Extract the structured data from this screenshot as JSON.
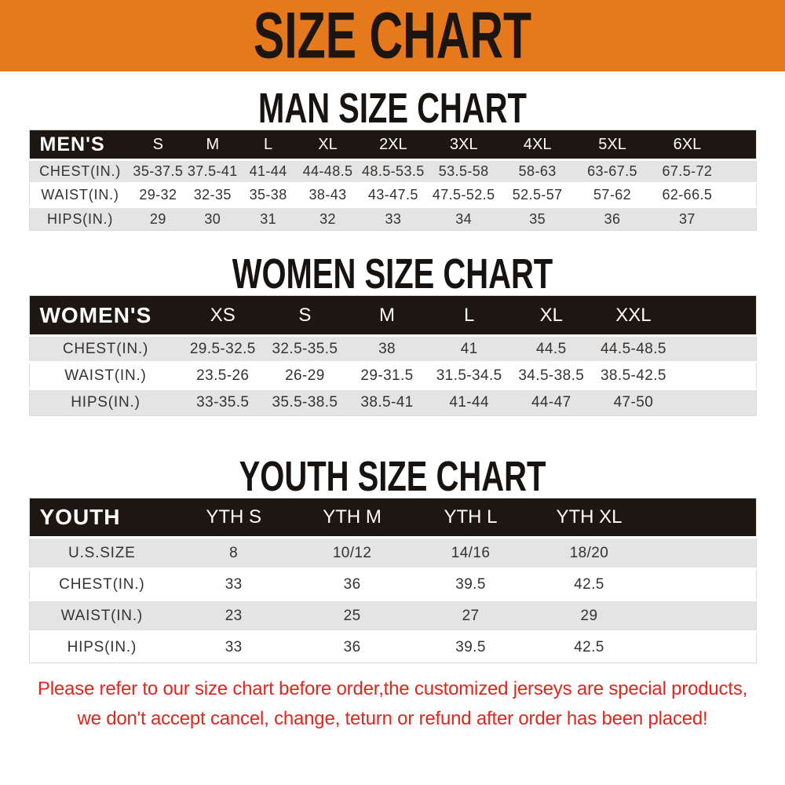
{
  "banner": {
    "title": "SIZE CHART"
  },
  "colors": {
    "banner_orange": "#e6791b",
    "table_header_black": "#1e1711",
    "row_gray": "#e4e4e4",
    "row_white": "#ffffff",
    "disclaimer_red": "#e1251f"
  },
  "sections": [
    {
      "id": "man",
      "title": "MAN SIZE CHART",
      "header_label": "MEN'S",
      "columns": [
        "S",
        "M",
        "L",
        "XL",
        "2XL",
        "3XL",
        "4XL",
        "5XL",
        "6XL"
      ],
      "rows": [
        {
          "label": "CHEST(IN.)",
          "values": [
            "35-37.5",
            "37.5-41",
            "41-44",
            "44-48.5",
            "48.5-53.5",
            "53.5-58",
            "58-63",
            "63-67.5",
            "67.5-72"
          ]
        },
        {
          "label": "WAIST(IN.)",
          "values": [
            "29-32",
            "32-35",
            "35-38",
            "38-43",
            "43-47.5",
            "47.5-52.5",
            "52.5-57",
            "57-62",
            "62-66.5"
          ]
        },
        {
          "label": "HIPS(IN.)",
          "values": [
            "29",
            "30",
            "31",
            "32",
            "33",
            "34",
            "35",
            "36",
            "37"
          ]
        }
      ]
    },
    {
      "id": "women",
      "title": "WOMEN SIZE CHART",
      "header_label": "WOMEN'S",
      "columns": [
        "XS",
        "S",
        "M",
        "L",
        "XL",
        "XXL"
      ],
      "rows": [
        {
          "label": "CHEST(IN.)",
          "values": [
            "29.5-32.5",
            "32.5-35.5",
            "38",
            "41",
            "44.5",
            "44.5-48.5"
          ]
        },
        {
          "label": "WAIST(IN.)",
          "values": [
            "23.5-26",
            "26-29",
            "29-31.5",
            "31.5-34.5",
            "34.5-38.5",
            "38.5-42.5"
          ]
        },
        {
          "label": "HIPS(IN.)",
          "values": [
            "33-35.5",
            "35.5-38.5",
            "38.5-41",
            "41-44",
            "44-47",
            "47-50"
          ]
        }
      ]
    },
    {
      "id": "youth",
      "title": "YOUTH SIZE CHART",
      "header_label": "YOUTH",
      "columns": [
        "YTH S",
        "YTH M",
        "YTH L",
        "YTH XL"
      ],
      "rows": [
        {
          "label": "U.S.SIZE",
          "values": [
            "8",
            "10/12",
            "14/16",
            "18/20"
          ]
        },
        {
          "label": "CHEST(IN.)",
          "values": [
            "33",
            "36",
            "39.5",
            "42.5"
          ]
        },
        {
          "label": "WAIST(IN.)",
          "values": [
            "23",
            "25",
            "27",
            "29"
          ]
        },
        {
          "label": "HIPS(IN.)",
          "values": [
            "33",
            "36",
            "39.5",
            "42.5"
          ]
        }
      ]
    }
  ],
  "footer": {
    "line1": "Please refer to our size chart before order,the customized jerseys are special products,",
    "line2": "we don't accept cancel, change, teturn or refund after order has been placed!"
  }
}
